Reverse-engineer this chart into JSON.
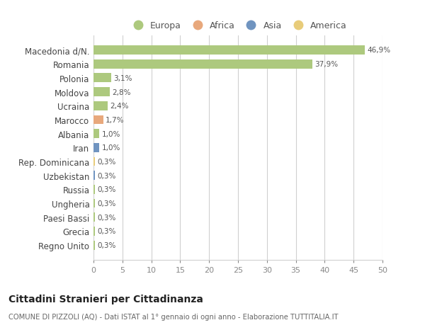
{
  "categories": [
    "Macedonia d/N.",
    "Romania",
    "Polonia",
    "Moldova",
    "Ucraina",
    "Marocco",
    "Albania",
    "Iran",
    "Rep. Dominicana",
    "Uzbekistan",
    "Russia",
    "Ungheria",
    "Paesi Bassi",
    "Grecia",
    "Regno Unito"
  ],
  "values": [
    46.9,
    37.9,
    3.1,
    2.8,
    2.4,
    1.7,
    1.0,
    1.0,
    0.3,
    0.3,
    0.3,
    0.3,
    0.3,
    0.3,
    0.3
  ],
  "labels": [
    "46,9%",
    "37,9%",
    "3,1%",
    "2,8%",
    "2,4%",
    "1,7%",
    "1,0%",
    "1,0%",
    "0,3%",
    "0,3%",
    "0,3%",
    "0,3%",
    "0,3%",
    "0,3%",
    "0,3%"
  ],
  "continent": [
    "Europa",
    "Europa",
    "Europa",
    "Europa",
    "Europa",
    "Africa",
    "Europa",
    "Asia",
    "America",
    "Asia",
    "Europa",
    "Europa",
    "Europa",
    "Europa",
    "Europa"
  ],
  "continent_colors": {
    "Europa": "#adc97e",
    "Africa": "#e8a87c",
    "Asia": "#7094c0",
    "America": "#e8cc7a"
  },
  "legend_items": [
    "Europa",
    "Africa",
    "Asia",
    "America"
  ],
  "legend_colors": [
    "#adc97e",
    "#e8a87c",
    "#7094c0",
    "#e8cc7a"
  ],
  "xlim": [
    0,
    50
  ],
  "xticks": [
    0,
    5,
    10,
    15,
    20,
    25,
    30,
    35,
    40,
    45,
    50
  ],
  "title": "Cittadini Stranieri per Cittadinanza",
  "subtitle": "COMUNE DI PIZZOLI (AQ) - Dati ISTAT al 1° gennaio di ogni anno - Elaborazione TUTTITALIA.IT",
  "background_color": "#ffffff",
  "grid_color": "#d0d0d0",
  "bar_height": 0.65
}
